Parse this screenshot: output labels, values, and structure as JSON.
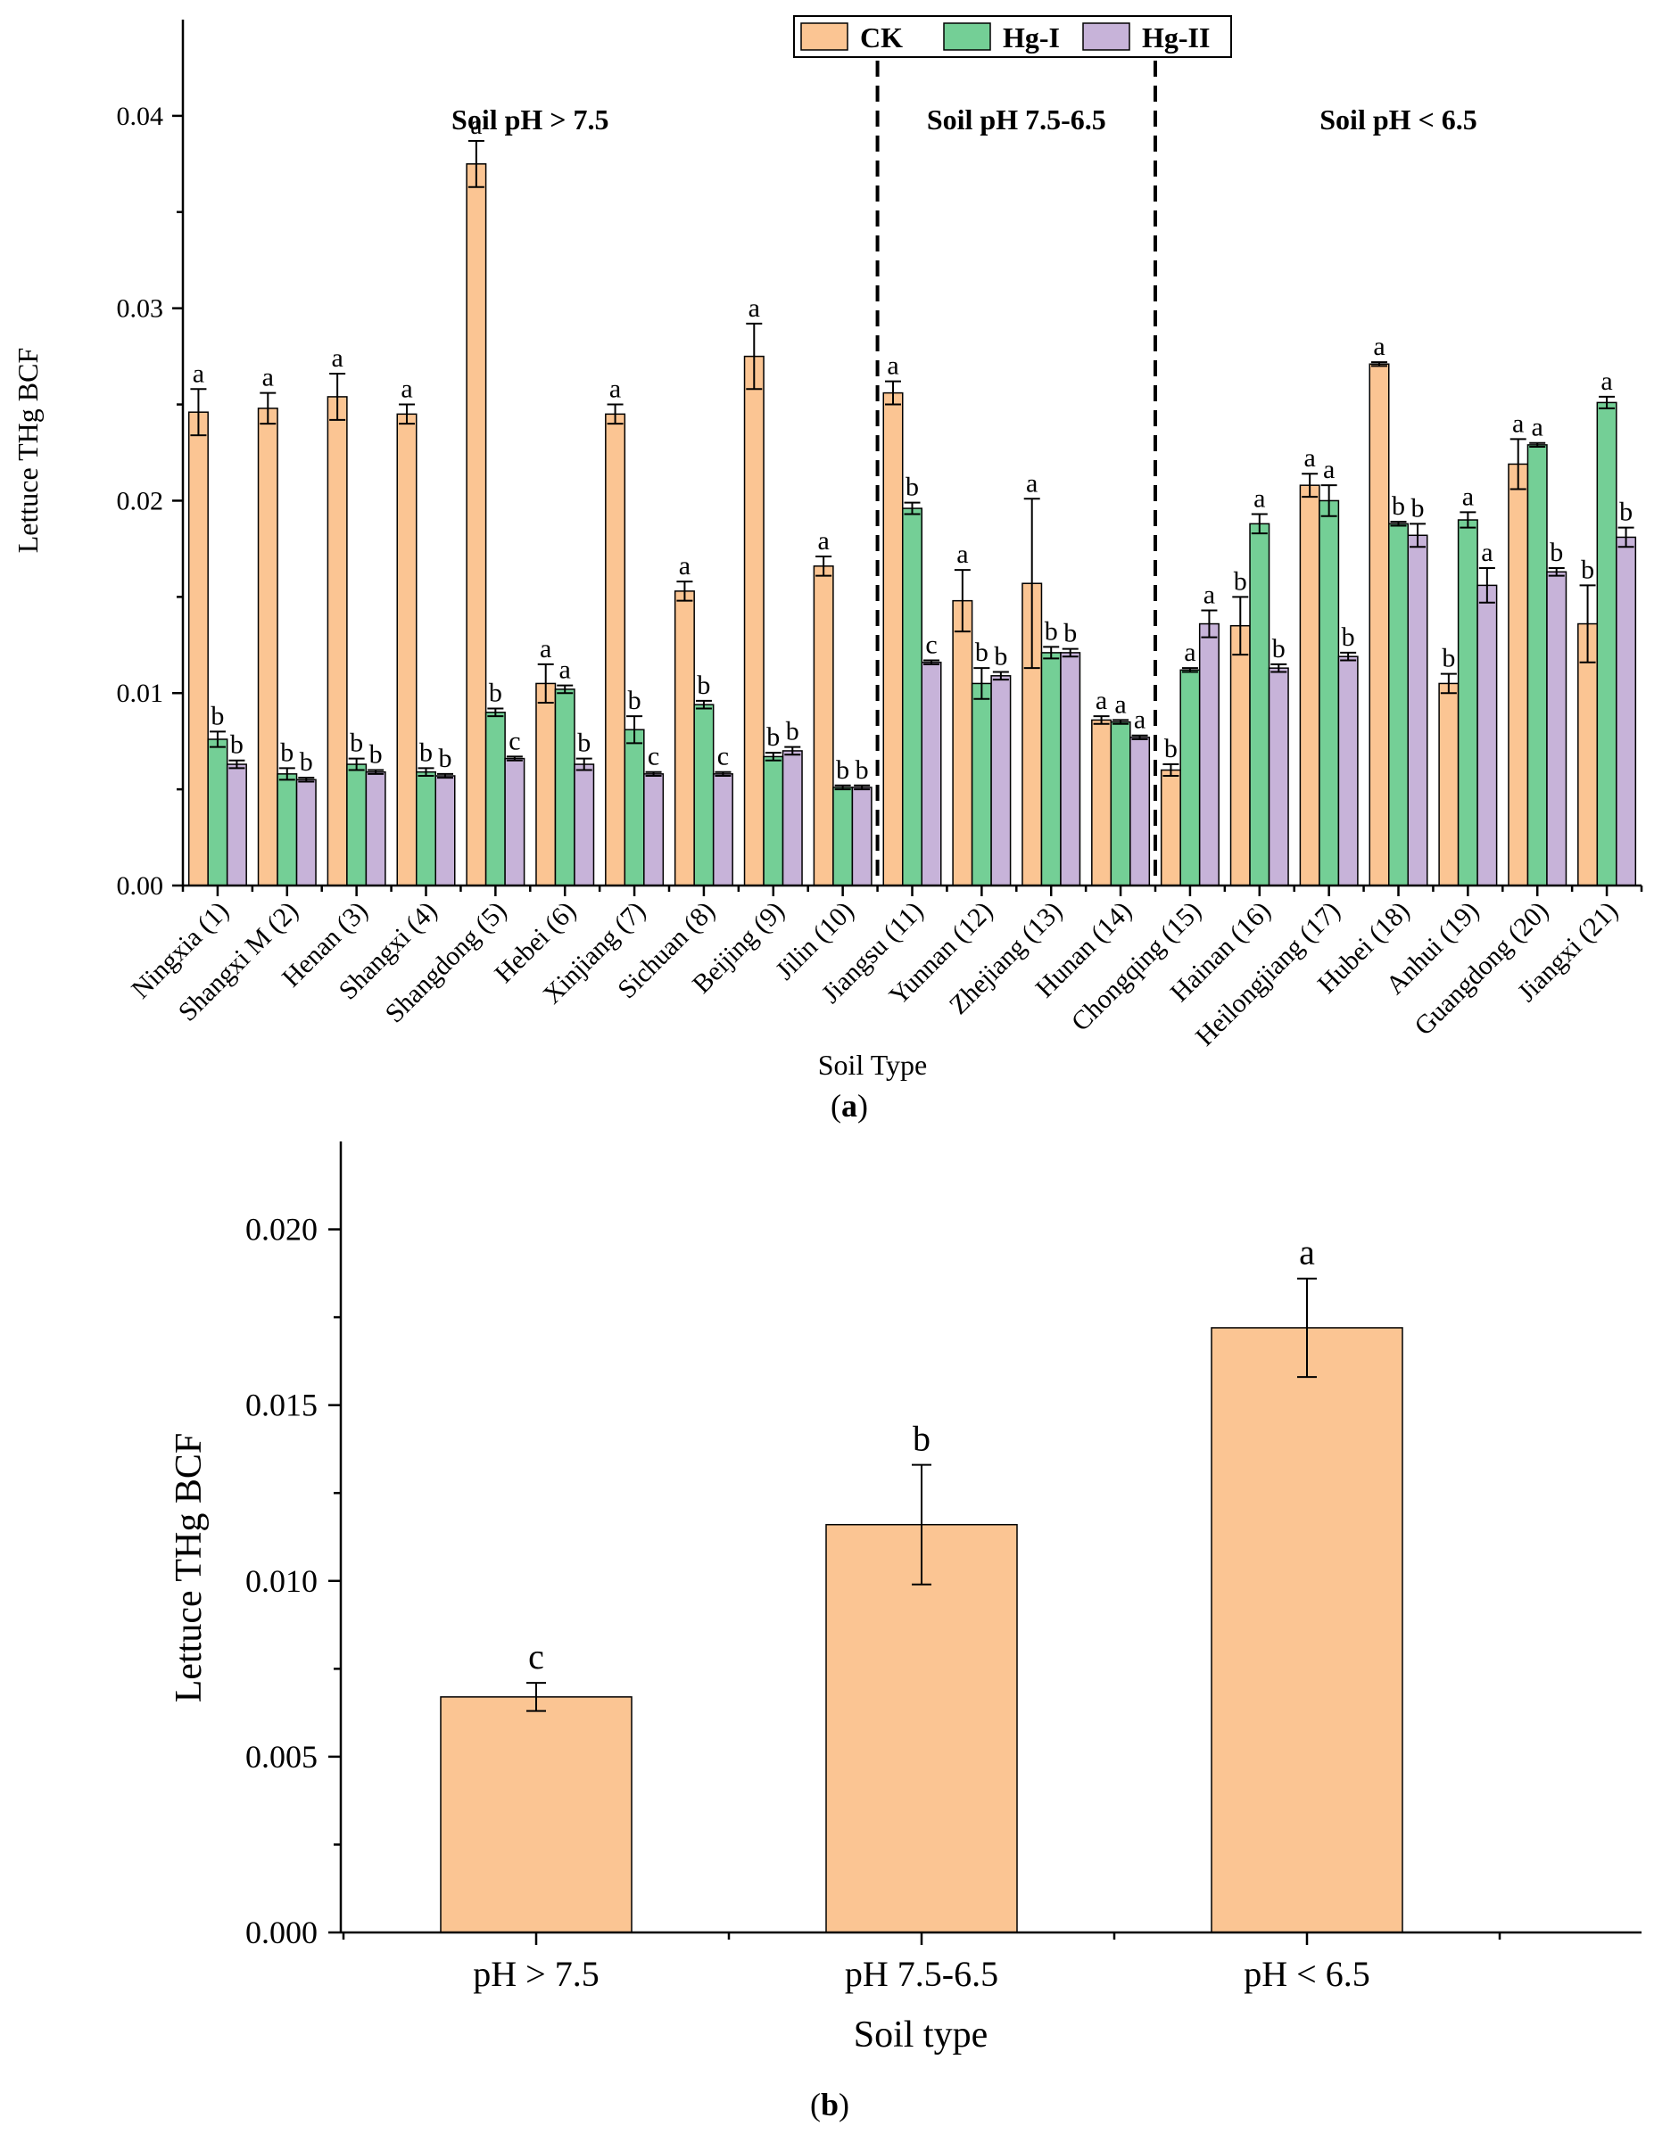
{
  "colors": {
    "CK": "#FBC593",
    "Hg-I": "#74CF96",
    "Hg-II": "#C7B3D9",
    "axis": "#000000"
  },
  "chart_data": [
    {
      "type": "bar",
      "panel_label_prefix": "(",
      "panel_label_letter": "a",
      "panel_label_suffix": ")",
      "xlabel": "Soil Type",
      "ylabel": "Lettuce THg BCF",
      "ylim": [
        0,
        0.045
      ],
      "yticks": [
        "0.00",
        "0.01",
        "0.02",
        "0.03",
        "0.04"
      ],
      "ytick_values": [
        0,
        0.01,
        0.02,
        0.03,
        0.04
      ],
      "legend_position": "top-center",
      "legend": [
        "CK",
        "Hg-I",
        "Hg-II"
      ],
      "regions": [
        {
          "label": "Soil pH > 7.5",
          "from": 0,
          "to": 9
        },
        {
          "label": "Soil pH 7.5-6.5",
          "from": 10,
          "to": 13
        },
        {
          "label": "Soil pH < 6.5",
          "from": 14,
          "to": 20
        }
      ],
      "separators_after_index": [
        9,
        13
      ],
      "categories": [
        "Ningxia (1)",
        "Shangxi M (2)",
        "Henan (3)",
        "Shangxi (4)",
        "Shangdong (5)",
        "Hebei (6)",
        "Xinjiang (7)",
        "Sichuan (8)",
        "Beijing (9)",
        "Jilin (10)",
        "Jiangsu (11)",
        "Yunnan (12)",
        "Zhejiang (13)",
        "Hunan (14)",
        "Chongqing (15)",
        "Hainan (16)",
        "Heilongjiang (17)",
        "Hubei (18)",
        "Anhui (19)",
        "Guangdong (20)",
        "Jiangxi (21)"
      ],
      "series": [
        {
          "name": "CK",
          "values": [
            0.0246,
            0.0248,
            0.0254,
            0.0245,
            0.0375,
            0.0105,
            0.0245,
            0.0153,
            0.0275,
            0.0166,
            0.0256,
            0.0148,
            0.0157,
            0.0086,
            0.006,
            0.0135,
            0.0208,
            0.0271,
            0.0105,
            0.0219,
            0.0136
          ],
          "errors": [
            0.0012,
            0.0008,
            0.0012,
            0.0005,
            0.0012,
            0.001,
            0.0005,
            0.0005,
            0.0017,
            0.0005,
            0.0006,
            0.0016,
            0.0044,
            0.0002,
            0.0003,
            0.0015,
            0.0006,
            0.0001,
            0.0005,
            0.0013,
            0.002
          ],
          "labels": [
            "a",
            "a",
            "a",
            "a",
            "a",
            "a",
            "a",
            "a",
            "a",
            "a",
            "a",
            "a",
            "a",
            "a",
            "b",
            "b",
            "a",
            "a",
            "b",
            "a",
            "b"
          ]
        },
        {
          "name": "Hg-I",
          "values": [
            0.0076,
            0.0058,
            0.0063,
            0.0059,
            0.009,
            0.0102,
            0.0081,
            0.0094,
            0.0067,
            0.0051,
            0.0196,
            0.0105,
            0.0121,
            0.0085,
            0.0112,
            0.0188,
            0.02,
            0.0188,
            0.019,
            0.0229,
            0.0251
          ],
          "errors": [
            0.0004,
            0.0003,
            0.0003,
            0.0002,
            0.0002,
            0.0002,
            0.0007,
            0.0002,
            0.0002,
            0.0001,
            0.0003,
            0.0008,
            0.0003,
            0.0001,
            0.0001,
            0.0005,
            0.0008,
            0.0001,
            0.0004,
            0.0001,
            0.0003
          ],
          "labels": [
            "b",
            "b",
            "b",
            "b",
            "b",
            "a",
            "b",
            "b",
            "b",
            "b",
            "b",
            "b",
            "b",
            "a",
            "a",
            "a",
            "a",
            "b",
            "a",
            "a",
            "a"
          ]
        },
        {
          "name": "Hg-II",
          "values": [
            0.0063,
            0.0055,
            0.0059,
            0.0057,
            0.0066,
            0.0063,
            0.0058,
            0.0058,
            0.007,
            0.0051,
            0.0116,
            0.0109,
            0.0121,
            0.0077,
            0.0136,
            0.0113,
            0.0119,
            0.0182,
            0.0156,
            0.0163,
            0.0181
          ],
          "errors": [
            0.0002,
            0.0001,
            0.0001,
            0.0001,
            0.0001,
            0.0003,
            0.0001,
            0.0001,
            0.0002,
            0.0001,
            0.0001,
            0.0002,
            0.0002,
            0.0001,
            0.0007,
            0.0002,
            0.0002,
            0.0006,
            0.0009,
            0.0002,
            0.0005
          ],
          "labels": [
            "b",
            "b",
            "b",
            "b",
            "c",
            "b",
            "c",
            "c",
            "b",
            "b",
            "c",
            "b",
            "b",
            "a",
            "a",
            "b",
            "b",
            "b",
            "a",
            "b",
            "b"
          ]
        }
      ]
    },
    {
      "type": "bar",
      "panel_label_prefix": "(",
      "panel_label_letter": "b",
      "panel_label_suffix": ")",
      "xlabel": "Soil type",
      "ylabel": "Lettuce THg BCF",
      "ylim": [
        0,
        0.0225
      ],
      "yticks": [
        "0.000",
        "0.005",
        "0.010",
        "0.015",
        "0.020"
      ],
      "ytick_values": [
        0,
        0.005,
        0.01,
        0.015,
        0.02
      ],
      "categories": [
        "pH > 7.5",
        "pH 7.5-6.5",
        "pH < 6.5"
      ],
      "values": [
        0.0067,
        0.0116,
        0.0172
      ],
      "errors": [
        0.0004,
        0.0017,
        0.0014
      ],
      "labels": [
        "c",
        "b",
        "a"
      ]
    }
  ]
}
